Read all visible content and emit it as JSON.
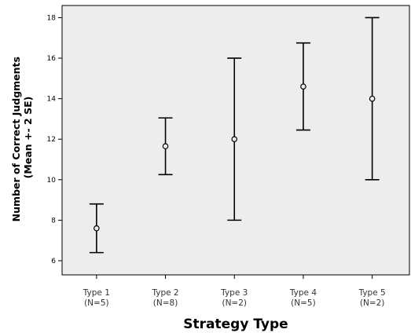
{
  "chart_data": {
    "type": "errorbar",
    "title": "",
    "xlabel": "Strategy Type",
    "ylabel_lines": [
      "Number of Correct Judgments",
      "(Mean +- 2 SE)"
    ],
    "ylim": [
      5.3,
      18.6
    ],
    "yticks": [
      6,
      8,
      10,
      12,
      14,
      16,
      18
    ],
    "grid": false,
    "legend": "none",
    "plot_background": "#ededed",
    "categories": [
      {
        "name": "Type 1",
        "n_label": "(N=5)",
        "mean": 7.6,
        "lower": 6.4,
        "upper": 8.8
      },
      {
        "name": "Type 2",
        "n_label": "(N=8)",
        "mean": 11.65,
        "lower": 10.25,
        "upper": 13.05
      },
      {
        "name": "Type 3",
        "n_label": "(N=2)",
        "mean": 12.0,
        "lower": 8.0,
        "upper": 16.0
      },
      {
        "name": "Type 4",
        "n_label": "(N=5)",
        "mean": 14.6,
        "lower": 12.45,
        "upper": 16.75
      },
      {
        "name": "Type 5",
        "n_label": "(N=2)",
        "mean": 14.0,
        "lower": 10.0,
        "upper": 18.0
      }
    ]
  }
}
